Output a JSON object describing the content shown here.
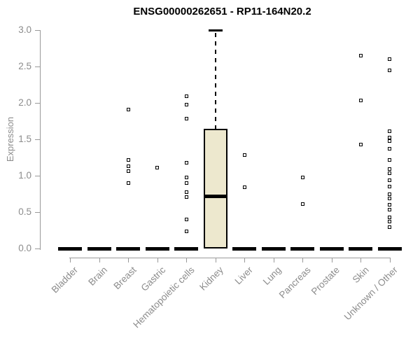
{
  "title": "ENSG00000262651 - RP11-164N20.2",
  "ylabel": "Expression",
  "colors": {
    "box_fill": "#ede8ce",
    "box_border": "#000000",
    "axis_line": "#999999",
    "tick_label": "#8c8c8c",
    "title_text": "#000000",
    "point_fill": "#ffffff"
  },
  "chart_data": {
    "type": "boxplot",
    "title": "ENSG00000262651 - RP11-164N20.2",
    "xlabel": "",
    "ylabel": "Expression",
    "ylim": [
      0.0,
      3.0
    ],
    "yticks": [
      0.0,
      0.5,
      1.0,
      1.5,
      2.0,
      2.5,
      3.0
    ],
    "grid": false,
    "legend": false,
    "categories": [
      "Bladder",
      "Brain",
      "Breast",
      "Gastric",
      "Hematopoietic cells",
      "Kidney",
      "Liver",
      "Lung",
      "Pancreas",
      "Prostate",
      "Skin",
      "Unknown / Other"
    ],
    "series": [
      {
        "name": "Bladder",
        "q1": 0,
        "median": 0,
        "q3": 0,
        "whisker_low": 0,
        "whisker_high": 0,
        "outliers": []
      },
      {
        "name": "Brain",
        "q1": 0,
        "median": 0,
        "q3": 0,
        "whisker_low": 0,
        "whisker_high": 0,
        "outliers": []
      },
      {
        "name": "Breast",
        "q1": 0,
        "median": 0,
        "q3": 0,
        "whisker_low": 0,
        "whisker_high": 0,
        "outliers": [
          1.91,
          1.22,
          1.13,
          1.06,
          0.9
        ]
      },
      {
        "name": "Gastric",
        "q1": 0,
        "median": 0,
        "q3": 0,
        "whisker_low": 0,
        "whisker_high": 0,
        "outliers": [
          1.11
        ]
      },
      {
        "name": "Hematopoietic cells",
        "q1": 0,
        "median": 0,
        "q3": 0,
        "whisker_low": 0,
        "whisker_high": 0,
        "outliers": [
          2.09,
          1.98,
          1.78,
          1.18,
          0.98,
          0.9,
          0.77,
          0.71,
          0.4,
          0.24
        ]
      },
      {
        "name": "Kidney",
        "q1": 0,
        "median": 0.72,
        "q3": 1.64,
        "whisker_low": 0,
        "whisker_high": 3.0,
        "outliers": []
      },
      {
        "name": "Liver",
        "q1": 0,
        "median": 0,
        "q3": 0,
        "whisker_low": 0,
        "whisker_high": 0,
        "outliers": [
          1.28,
          0.84
        ]
      },
      {
        "name": "Lung",
        "q1": 0,
        "median": 0,
        "q3": 0,
        "whisker_low": 0,
        "whisker_high": 0,
        "outliers": []
      },
      {
        "name": "Pancreas",
        "q1": 0,
        "median": 0,
        "q3": 0,
        "whisker_low": 0,
        "whisker_high": 0,
        "outliers": [
          0.98,
          0.61
        ]
      },
      {
        "name": "Prostate",
        "q1": 0,
        "median": 0,
        "q3": 0,
        "whisker_low": 0,
        "whisker_high": 0,
        "outliers": []
      },
      {
        "name": "Skin",
        "q1": 0,
        "median": 0,
        "q3": 0,
        "whisker_low": 0,
        "whisker_high": 0,
        "outliers": [
          2.65,
          2.03,
          1.43
        ]
      },
      {
        "name": "Unknown / Other",
        "q1": 0,
        "median": 0,
        "q3": 0,
        "whisker_low": 0,
        "whisker_high": 0,
        "outliers": [
          2.6,
          2.45,
          1.61,
          1.52,
          1.48,
          1.37,
          1.22,
          1.09,
          1.03,
          0.94,
          0.85,
          0.75,
          0.69,
          0.6,
          0.53,
          0.43,
          0.37,
          0.29
        ]
      }
    ]
  }
}
